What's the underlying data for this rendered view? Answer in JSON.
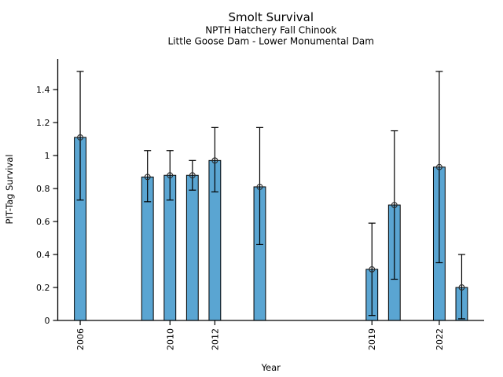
{
  "figure": {
    "title": "Smolt Survival",
    "subtitle_line1": "NPTH Hatchery Fall Chinook",
    "subtitle_line2": "Little Goose Dam - Lower Monumental Dam"
  },
  "chart_data": {
    "type": "bar",
    "title": "Smolt Survival",
    "subtitle": [
      "NPTH Hatchery Fall Chinook",
      "Little Goose Dam - Lower Monumental Dam"
    ],
    "xlabel": "Year",
    "ylabel": "PIT-Tag Survival",
    "xlim": [
      2005,
      2024
    ],
    "ylim": [
      0,
      1.586
    ],
    "x_ticks": [
      2006,
      2010,
      2012,
      2019,
      2022
    ],
    "x_tick_labels": [
      "2006",
      "2010",
      "2012",
      "2019",
      "2022"
    ],
    "y_ticks": [
      0,
      0.2,
      0.4,
      0.6,
      0.8,
      1,
      1.2,
      1.4
    ],
    "y_tick_labels": [
      "0",
      "0.2",
      "0.4",
      "0.6",
      "0.8",
      "1",
      "1.2",
      "1.4"
    ],
    "grid": false,
    "legend": null,
    "bar_width_years": 0.52,
    "colors": {
      "bar_fill": "#5AA5D2",
      "bar_edge": "#000000",
      "error_bar": "#000000",
      "marker_edge": "#2a2a2a",
      "spine": "#000000"
    },
    "marker": "open-circle",
    "points": [
      {
        "year": 2006,
        "value": 1.11,
        "ci_low": 0.73,
        "ci_high": 1.51
      },
      {
        "year": 2009,
        "value": 0.87,
        "ci_low": 0.72,
        "ci_high": 1.03
      },
      {
        "year": 2010,
        "value": 0.88,
        "ci_low": 0.73,
        "ci_high": 1.03
      },
      {
        "year": 2011,
        "value": 0.88,
        "ci_low": 0.79,
        "ci_high": 0.97
      },
      {
        "year": 2012,
        "value": 0.97,
        "ci_low": 0.78,
        "ci_high": 1.17
      },
      {
        "year": 2014,
        "value": 0.81,
        "ci_low": 0.46,
        "ci_high": 1.17
      },
      {
        "year": 2019,
        "value": 0.31,
        "ci_low": 0.03,
        "ci_high": 0.59
      },
      {
        "year": 2020,
        "value": 0.7,
        "ci_low": 0.25,
        "ci_high": 1.15
      },
      {
        "year": 2022,
        "value": 0.93,
        "ci_low": 0.35,
        "ci_high": 1.51
      },
      {
        "year": 2023,
        "value": 0.2,
        "ci_low": 0.01,
        "ci_high": 0.4
      }
    ]
  }
}
